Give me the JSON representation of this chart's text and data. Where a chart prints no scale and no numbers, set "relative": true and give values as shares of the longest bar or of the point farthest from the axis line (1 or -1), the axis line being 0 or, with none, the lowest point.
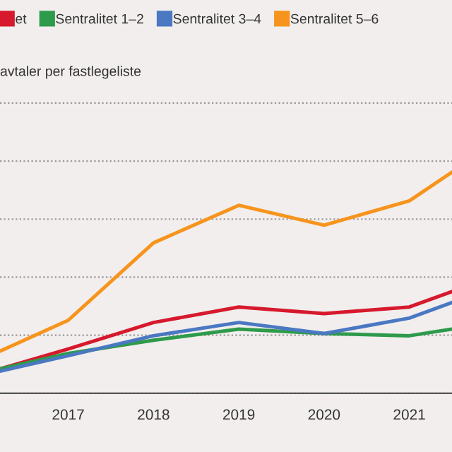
{
  "chart_data": {
    "type": "line",
    "relative": true,
    "annotations": [
      "avtaler per fastlegeliste"
    ],
    "x": [
      2016.2,
      2017,
      2018,
      2019,
      2020,
      2021,
      2021.5
    ],
    "xlim": [
      2016.2,
      2021.5
    ],
    "xticks": [
      2017,
      2018,
      2019,
      2020,
      2021
    ],
    "grid": "y",
    "legend": "top left",
    "line_style": "solid",
    "marker": "none",
    "series": [
      {
        "name": "et",
        "color": "#d7192d",
        "values": [
          0.11,
          0.2,
          0.32,
          0.39,
          0.36,
          0.39,
          0.46
        ]
      },
      {
        "name": "Sentralitet 1–2",
        "color": "#2e9a4b",
        "values": [
          0.11,
          0.18,
          0.24,
          0.29,
          0.27,
          0.26,
          0.29
        ]
      },
      {
        "name": "Sentralitet 3–4",
        "color": "#4a78c2",
        "values": [
          0.1,
          0.17,
          0.26,
          0.32,
          0.27,
          0.34,
          0.41
        ]
      },
      {
        "name": "Sentralitet 5–6",
        "color": "#f7941d",
        "values": [
          0.19,
          0.33,
          0.68,
          0.85,
          0.76,
          0.87,
          1.0
        ]
      }
    ]
  }
}
